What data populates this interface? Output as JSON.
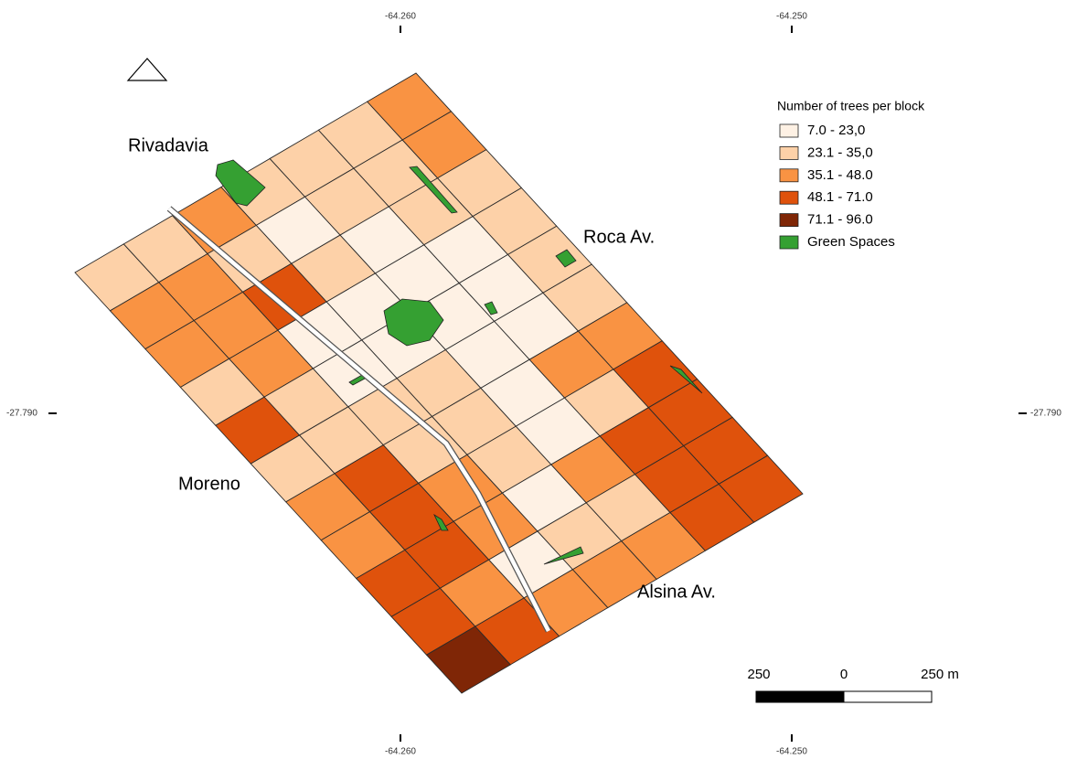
{
  "graticule": {
    "top": [
      "-64.260",
      "-64.250"
    ],
    "bottom": [
      "-64.260",
      "-64.250"
    ],
    "left": [
      "-27.790"
    ],
    "right": [
      "-27.790"
    ]
  },
  "streets": [
    "Rivadavia",
    "Roca Av.",
    "Moreno",
    "Alsina Av."
  ],
  "legend": {
    "title": "Number of trees per block",
    "items": [
      {
        "label": "7.0 - 23,0",
        "color": "#fef1e4"
      },
      {
        "label": "23.1 - 35,0",
        "color": "#fdd1a8"
      },
      {
        "label": "35.1 - 48.0",
        "color": "#f99343"
      },
      {
        "label": "48.1 - 71.0",
        "color": "#df520c"
      },
      {
        "label": "71.1 - 96.0",
        "color": "#7f2606"
      },
      {
        "label": "Green Spaces",
        "color": "#35a032"
      }
    ]
  },
  "scale_bar": {
    "labels": [
      "250",
      "0",
      "250 m"
    ]
  }
}
